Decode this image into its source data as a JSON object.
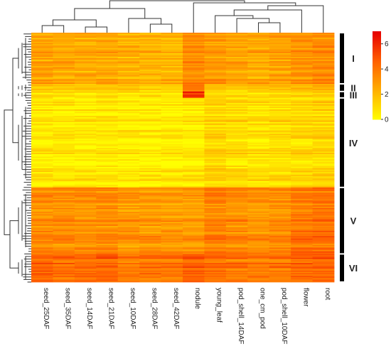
{
  "chart_data": {
    "type": "heatmap",
    "title": "",
    "xlabel": "",
    "ylabel": "",
    "columns": [
      "seed_25DAF",
      "seed_35DAF",
      "seed_14DAF",
      "seed_21DAF",
      "seed_10DAF",
      "seed_28DAF",
      "seed_42DAF",
      "nodule",
      "young_leaf",
      "pod_shell_14DAF",
      "one_cm_pod",
      "pod_shell_10DAF",
      "flower",
      "root"
    ],
    "color_scale": {
      "colors": [
        "#ffff00",
        "#ffb000",
        "#ff6000",
        "#e60000"
      ],
      "ticks": [
        0,
        2,
        4,
        6
      ],
      "range": [
        0,
        7
      ]
    },
    "clusters": [
      {
        "label": "I",
        "rows": 40,
        "means": [
          2.6,
          2.5,
          2.4,
          2.5,
          2.2,
          2.1,
          2.1,
          3.2,
          2.9,
          2.6,
          2.4,
          2.6,
          3.1,
          3.3
        ]
      },
      {
        "label": "II",
        "rows": 6,
        "means": [
          1.2,
          1.1,
          1.0,
          1.1,
          1.0,
          0.9,
          0.9,
          3.6,
          1.6,
          1.3,
          1.2,
          1.3,
          1.7,
          1.8
        ]
      },
      {
        "label": "III",
        "rows": 5,
        "means": [
          0.8,
          0.7,
          0.7,
          0.8,
          0.7,
          0.7,
          0.6,
          5.8,
          1.2,
          0.9,
          0.9,
          1.0,
          1.3,
          1.5
        ]
      },
      {
        "label": "IV",
        "rows": 70,
        "means": [
          0.7,
          0.6,
          0.6,
          0.7,
          0.5,
          0.5,
          0.5,
          0.7,
          1.3,
          1.0,
          0.9,
          1.0,
          1.1,
          1.3
        ]
      },
      {
        "label": "V",
        "rows": 52,
        "means": [
          3.3,
          3.3,
          3.2,
          3.4,
          3.0,
          3.0,
          2.9,
          2.9,
          3.6,
          3.3,
          3.2,
          3.3,
          3.9,
          4.1
        ]
      },
      {
        "label": "VI",
        "rows": 22,
        "means": [
          4.5,
          4.3,
          4.3,
          4.6,
          3.9,
          4.0,
          3.9,
          4.7,
          4.2,
          4.0,
          3.9,
          4.0,
          4.4,
          4.5
        ]
      }
    ]
  }
}
